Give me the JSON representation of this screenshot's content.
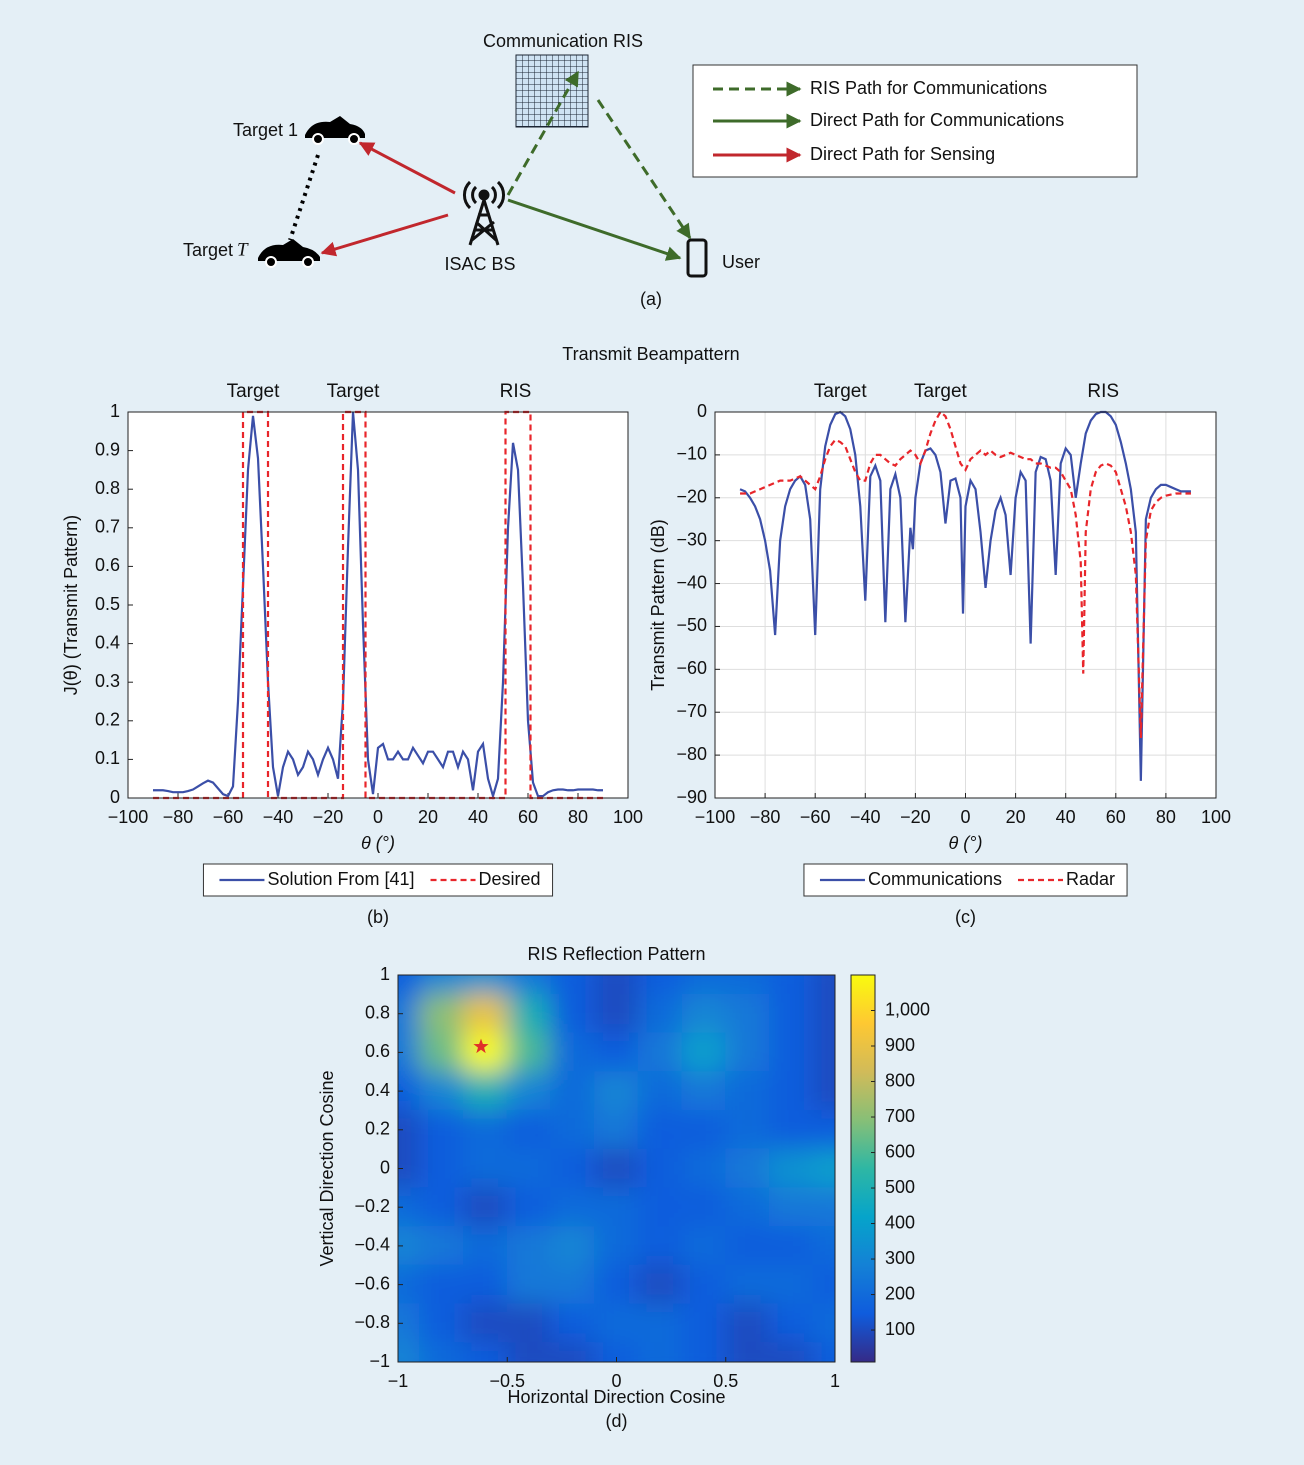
{
  "diagram": {
    "ris_label": "Communication RIS",
    "legend": [
      "RIS Path for Communications",
      "Direct Path for Communications",
      "Direct Path for Sensing"
    ],
    "target1": "Target 1",
    "target_t": "Target",
    "target_t_symbol": "T",
    "bs": "ISAC BS",
    "user": "User",
    "caption": "(a)"
  },
  "beampattern_title": "Transmit Beampattern",
  "chart_data": [
    {
      "type": "line",
      "caption": "(b)",
      "xlabel": "θ (°)",
      "ylabel": "J(θ) (Transmit Pattern)",
      "xlim": [
        -100,
        100
      ],
      "ylim": [
        0,
        1
      ],
      "xticks": [
        {
          "value": -100,
          "label": "−100"
        },
        {
          "value": -80,
          "label": "−80"
        },
        {
          "value": -60,
          "label": "−60"
        },
        {
          "value": -40,
          "label": "−40"
        },
        {
          "value": -20,
          "label": "−20"
        },
        0,
        20,
        40,
        60,
        80,
        100
      ],
      "yticks": [
        0,
        0.1,
        0.2,
        0.3,
        0.4,
        0.5,
        0.6,
        0.7,
        0.8,
        0.9,
        1
      ],
      "grid": false,
      "legend": "below",
      "annotations": [
        {
          "text": "Target",
          "x": -50
        },
        {
          "text": "Target",
          "x": -10
        },
        {
          "text": "RIS",
          "x": 55
        }
      ],
      "series": [
        {
          "name": "Solution From [41]",
          "color": "#3b4fa8",
          "line_style": "solid",
          "x": [
            -90,
            -88,
            -86,
            -84,
            -82,
            -80,
            -78,
            -76,
            -74,
            -72,
            -70,
            -68,
            -66,
            -64,
            -62,
            -60,
            -58,
            -56,
            -54,
            -52,
            -50,
            -48,
            -46,
            -44,
            -42,
            -40,
            -38,
            -36,
            -34,
            -32,
            -30,
            -28,
            -26,
            -24,
            -22,
            -20,
            -18,
            -16,
            -14,
            -12,
            -10,
            -8,
            -6,
            -4,
            -2,
            0,
            2,
            4,
            6,
            8,
            10,
            12,
            14,
            16,
            18,
            20,
            22,
            24,
            26,
            28,
            30,
            32,
            34,
            36,
            38,
            40,
            42,
            44,
            46,
            48,
            50,
            52,
            54,
            56,
            58,
            60,
            62,
            64,
            66,
            68,
            70,
            72,
            74,
            76,
            78,
            80,
            82,
            84,
            86,
            88,
            90
          ],
          "values": [
            0.02,
            0.02,
            0.02,
            0.018,
            0.015,
            0.015,
            0.015,
            0.018,
            0.022,
            0.03,
            0.038,
            0.045,
            0.04,
            0.025,
            0.01,
            0.005,
            0.03,
            0.25,
            0.55,
            0.85,
            0.99,
            0.88,
            0.6,
            0.3,
            0.08,
            0.005,
            0.08,
            0.12,
            0.1,
            0.06,
            0.08,
            0.12,
            0.1,
            0.06,
            0.1,
            0.13,
            0.1,
            0.05,
            0.25,
            0.65,
            1.0,
            0.85,
            0.45,
            0.1,
            0.01,
            0.13,
            0.14,
            0.1,
            0.1,
            0.12,
            0.1,
            0.1,
            0.13,
            0.11,
            0.09,
            0.12,
            0.12,
            0.1,
            0.08,
            0.12,
            0.12,
            0.08,
            0.12,
            0.1,
            0.02,
            0.12,
            0.14,
            0.05,
            0.005,
            0.05,
            0.3,
            0.7,
            0.92,
            0.85,
            0.55,
            0.2,
            0.04,
            0.005,
            0.005,
            0.015,
            0.02,
            0.022,
            0.022,
            0.02,
            0.02,
            0.022,
            0.022,
            0.022,
            0.022,
            0.02,
            0.02
          ]
        },
        {
          "name": "Desired",
          "color": "#e8262b",
          "line_style": "dashed",
          "x": [
            -90,
            -54,
            -54,
            -44,
            -44,
            -14,
            -14,
            -5,
            -5,
            51,
            51,
            61,
            61,
            90
          ],
          "values": [
            0,
            0,
            1,
            1,
            0,
            0,
            1,
            1,
            0,
            0,
            1,
            1,
            0,
            0
          ]
        }
      ]
    },
    {
      "type": "line",
      "caption": "(c)",
      "xlabel": "θ (°)",
      "ylabel": "Transmit Pattern (dB)",
      "xlim": [
        -100,
        100
      ],
      "ylim": [
        -90,
        0
      ],
      "xticks": [
        {
          "value": -100,
          "label": "−100"
        },
        {
          "value": -80,
          "label": "−80"
        },
        {
          "value": -60,
          "label": "−60"
        },
        {
          "value": -40,
          "label": "−40"
        },
        {
          "value": -20,
          "label": "−20"
        },
        0,
        20,
        40,
        60,
        80,
        100
      ],
      "yticks": [
        {
          "value": -90,
          "label": "−90"
        },
        {
          "value": -80,
          "label": "−80"
        },
        {
          "value": -70,
          "label": "−70"
        },
        {
          "value": -60,
          "label": "−60"
        },
        {
          "value": -50,
          "label": "−50"
        },
        {
          "value": -40,
          "label": "−40"
        },
        {
          "value": -30,
          "label": "−30"
        },
        {
          "value": -20,
          "label": "−20"
        },
        {
          "value": -10,
          "label": "−10"
        },
        0
      ],
      "grid": true,
      "legend": "below",
      "annotations": [
        {
          "text": "Target",
          "x": -50
        },
        {
          "text": "Target",
          "x": -10
        },
        {
          "text": "RIS",
          "x": 55
        }
      ],
      "series": [
        {
          "name": "Communications",
          "color": "#3b4fa8",
          "line_style": "solid",
          "x": [
            -90,
            -88,
            -86,
            -84,
            -82,
            -80,
            -78,
            -76,
            -74,
            -72,
            -70,
            -68,
            -66,
            -64,
            -62,
            -60,
            -58,
            -56,
            -54,
            -52,
            -50,
            -48,
            -46,
            -44,
            -42,
            -40,
            -38,
            -36,
            -34,
            -32,
            -30,
            -28,
            -26,
            -24,
            -22,
            -21,
            -20,
            -18,
            -16,
            -14,
            -12,
            -10,
            -8,
            -6,
            -4,
            -2,
            -1,
            0,
            2,
            4,
            6,
            8,
            10,
            12,
            14,
            16,
            18,
            20,
            22,
            24,
            26,
            28,
            30,
            32,
            34,
            36,
            38,
            40,
            42,
            44,
            46,
            48,
            50,
            52,
            54,
            56,
            58,
            60,
            62,
            64,
            66,
            68,
            70,
            72,
            74,
            76,
            78,
            80,
            82,
            84,
            86,
            88,
            90
          ],
          "values": [
            -18,
            -18.5,
            -20,
            -22,
            -25,
            -30,
            -37,
            -52,
            -30,
            -22,
            -18,
            -16,
            -15,
            -17,
            -25,
            -52,
            -18,
            -8,
            -3,
            -0.5,
            0,
            -1,
            -4,
            -10,
            -22,
            -44,
            -15,
            -12.5,
            -16,
            -49,
            -18,
            -14.5,
            -20,
            -49,
            -27,
            -32,
            -20,
            -12,
            -9,
            -8.5,
            -10,
            -14,
            -26,
            -16,
            -15.5,
            -20,
            -47,
            -22,
            -16,
            -18,
            -28,
            -41,
            -30,
            -23,
            -20,
            -24,
            -38,
            -20,
            -14,
            -16,
            -54,
            -14,
            -10.5,
            -11,
            -16,
            -38,
            -12,
            -8.5,
            -10,
            -20,
            -12,
            -5,
            -2,
            -0.5,
            0,
            0,
            -1,
            -3,
            -7,
            -12,
            -18,
            -28,
            -86,
            -25,
            -20,
            -18,
            -17,
            -17,
            -17.5,
            -18,
            -18.5,
            -18.5,
            -18.5
          ]
        },
        {
          "name": "Radar",
          "color": "#e8262b",
          "line_style": "dashed",
          "x": [
            -90,
            -86,
            -82,
            -78,
            -74,
            -70,
            -66,
            -64,
            -62,
            -60,
            -58,
            -56,
            -54,
            -52,
            -50,
            -48,
            -46,
            -44,
            -42,
            -40,
            -38,
            -36,
            -34,
            -32,
            -30,
            -28,
            -26,
            -24,
            -22,
            -20,
            -18,
            -16,
            -14,
            -12,
            -10,
            -8,
            -6,
            -4,
            -2,
            0,
            2,
            4,
            6,
            8,
            10,
            12,
            14,
            16,
            18,
            20,
            22,
            24,
            26,
            28,
            30,
            32,
            34,
            36,
            38,
            40,
            42,
            44,
            46,
            47,
            48,
            50,
            52,
            54,
            56,
            58,
            60,
            62,
            64,
            66,
            68,
            70,
            72,
            74,
            76,
            78,
            80,
            84,
            88,
            90
          ],
          "values": [
            -19,
            -19,
            -18,
            -17,
            -16,
            -16,
            -15,
            -16,
            -17,
            -18,
            -15,
            -11,
            -8,
            -6.5,
            -7,
            -8,
            -11,
            -14,
            -16,
            -16,
            -12,
            -10,
            -10,
            -11,
            -12,
            -12.5,
            -11,
            -10,
            -9,
            -10,
            -12,
            -9,
            -5,
            -2,
            0,
            -1,
            -4,
            -8,
            -12,
            -13.5,
            -11,
            -10,
            -9,
            -10,
            -9,
            -10,
            -10.5,
            -10,
            -9.5,
            -10,
            -10.5,
            -11,
            -11,
            -12,
            -12,
            -12.5,
            -13,
            -13,
            -14,
            -16,
            -18,
            -24,
            -35,
            -61,
            -28,
            -18,
            -14,
            -12.5,
            -12,
            -12.5,
            -14,
            -18,
            -22,
            -28,
            -38,
            -76,
            -30,
            -23,
            -21,
            -20,
            -19.5,
            -19,
            -19,
            -19
          ]
        }
      ]
    },
    {
      "type": "heatmap",
      "title": "RIS Reflection Pattern",
      "caption": "(d)",
      "xlabel": "Horizontal Direction Cosine",
      "ylabel": "Vertical Direction Cosine",
      "xlim": [
        -1,
        1
      ],
      "ylim": [
        -1,
        1
      ],
      "xticks": [
        {
          "value": -1,
          "label": "−1"
        },
        {
          "value": -0.5,
          "label": "−0.5"
        },
        0,
        0.5,
        1
      ],
      "yticks": [
        {
          "value": -1,
          "label": "−1"
        },
        {
          "value": -0.8,
          "label": "−0.8"
        },
        {
          "value": -0.6,
          "label": "−0.6"
        },
        {
          "value": -0.4,
          "label": "−0.4"
        },
        {
          "value": -0.2,
          "label": "−0.2"
        },
        0,
        0.2,
        0.4,
        0.6,
        0.8,
        1
      ],
      "x": [
        -1,
        -0.8,
        -0.6,
        -0.4,
        -0.2,
        0,
        0.2,
        0.4,
        0.6,
        0.8,
        1
      ],
      "y": [
        1,
        0.8,
        0.6,
        0.4,
        0.2,
        0,
        -0.2,
        -0.4,
        -0.6,
        -0.8,
        -1
      ],
      "z": [
        [
          150,
          300,
          350,
          250,
          150,
          100,
          150,
          200,
          200,
          150,
          100
        ],
        [
          250,
          700,
          900,
          500,
          150,
          100,
          200,
          300,
          250,
          150,
          100
        ],
        [
          250,
          650,
          1100,
          600,
          200,
          150,
          250,
          400,
          250,
          150,
          100
        ],
        [
          150,
          300,
          500,
          300,
          200,
          300,
          200,
          250,
          200,
          150,
          100
        ],
        [
          100,
          150,
          200,
          150,
          200,
          250,
          150,
          150,
          200,
          150,
          150
        ],
        [
          100,
          150,
          200,
          200,
          150,
          100,
          150,
          200,
          250,
          350,
          400
        ],
        [
          200,
          150,
          100,
          150,
          200,
          200,
          150,
          150,
          200,
          250,
          250
        ],
        [
          300,
          250,
          200,
          250,
          300,
          200,
          150,
          200,
          150,
          150,
          200
        ],
        [
          200,
          150,
          150,
          250,
          250,
          150,
          100,
          150,
          200,
          200,
          150
        ],
        [
          250,
          150,
          100,
          100,
          150,
          200,
          200,
          150,
          100,
          150,
          200
        ],
        [
          300,
          200,
          150,
          100,
          100,
          150,
          200,
          150,
          100,
          100,
          150
        ]
      ],
      "clim": [
        10,
        1100
      ],
      "cticks": [
        100,
        200,
        300,
        400,
        500,
        600,
        700,
        800,
        900,
        {
          "value": 1000,
          "label": "1,000"
        }
      ],
      "colormap": [
        "#352a87",
        "#0f5cdd",
        "#1481d6",
        "#06a4ca",
        "#2eb7a4",
        "#87bf77",
        "#d1bb59",
        "#fec832",
        "#f9fb0e"
      ],
      "marker": {
        "x": -0.62,
        "y": 0.63,
        "color": "#e0302a"
      }
    }
  ]
}
